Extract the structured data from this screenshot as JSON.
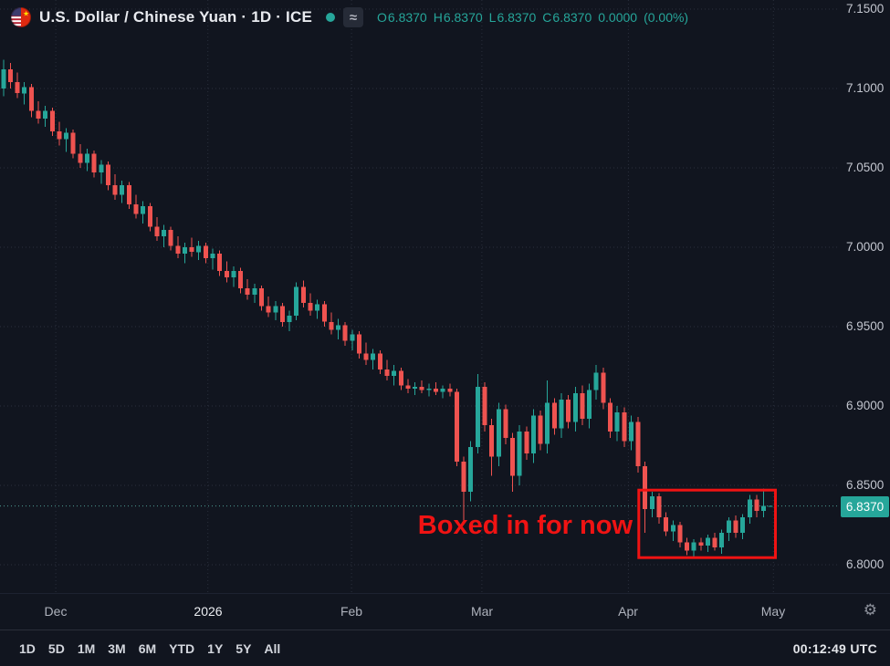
{
  "header": {
    "symbol_title": "U.S. Dollar / Chinese Yuan · 1D · ICE",
    "status_badge": "≈",
    "ohlc": {
      "open_label": "O",
      "open": "6.8370",
      "high_label": "H",
      "high": "6.8370",
      "low_label": "L",
      "low": "6.8370",
      "close_label": "C",
      "close": "6.8370",
      "change": "0.0000",
      "change_pct": "(0.00%)"
    }
  },
  "annotation": {
    "text": "Boxed in for now",
    "color": "#f01313"
  },
  "icons": {
    "gear": "⚙",
    "flag": "us-cn-pair-flag",
    "status_dot_color": "#26a69a"
  },
  "price_axis": {
    "ticks": [
      "7.1500",
      "7.1000",
      "7.0500",
      "7.0000",
      "6.9500",
      "6.9000",
      "6.8500",
      "6.8000"
    ],
    "current": "6.8370",
    "current_value": 6.837,
    "label_color": "#26a69a"
  },
  "time_axis": {
    "labels": [
      {
        "text": "Dec",
        "pos": 8.0
      },
      {
        "text": "2026",
        "pos": 29.8,
        "year": true
      },
      {
        "text": "Feb",
        "pos": 50.4
      },
      {
        "text": "Mar",
        "pos": 69.1
      },
      {
        "text": "Apr",
        "pos": 90.1
      },
      {
        "text": "May",
        "pos": 110.9
      }
    ]
  },
  "toolbar": {
    "ranges": [
      "1D",
      "5D",
      "1M",
      "3M",
      "6M",
      "YTD",
      "1Y",
      "5Y",
      "All"
    ],
    "clock": "00:12:49 UTC"
  },
  "chart_data": {
    "type": "candlestick",
    "title": "U.S. Dollar / Chinese Yuan",
    "interval": "1D",
    "exchange": "ICE",
    "up_color": "#26a69a",
    "down_color": "#ef5350",
    "grid": true,
    "y_axis": {
      "min": 6.78,
      "max": 7.155,
      "ticks": [
        7.15,
        7.1,
        7.05,
        7.0,
        6.95,
        6.9,
        6.85,
        6.8
      ]
    },
    "current_price": 6.837,
    "box": {
      "x1_bar": 91.6,
      "x2_bar": 111.2,
      "price_top": 6.847,
      "price_bottom": 6.8045
    },
    "candles": [
      [
        7.1,
        7.118,
        7.095,
        7.112
      ],
      [
        7.112,
        7.116,
        7.1,
        7.104
      ],
      [
        7.104,
        7.11,
        7.094,
        7.097
      ],
      [
        7.097,
        7.104,
        7.09,
        7.101
      ],
      [
        7.101,
        7.103,
        7.082,
        7.086
      ],
      [
        7.086,
        7.092,
        7.078,
        7.081
      ],
      [
        7.081,
        7.089,
        7.076,
        7.086
      ],
      [
        7.086,
        7.088,
        7.07,
        7.073
      ],
      [
        7.073,
        7.079,
        7.064,
        7.068
      ],
      [
        7.068,
        7.075,
        7.06,
        7.072
      ],
      [
        7.072,
        7.074,
        7.056,
        7.059
      ],
      [
        7.059,
        7.065,
        7.05,
        7.053
      ],
      [
        7.053,
        7.062,
        7.048,
        7.059
      ],
      [
        7.059,
        7.061,
        7.044,
        7.047
      ],
      [
        7.047,
        7.055,
        7.04,
        7.052
      ],
      [
        7.052,
        7.054,
        7.036,
        7.039
      ],
      [
        7.039,
        7.046,
        7.03,
        7.033
      ],
      [
        7.033,
        7.042,
        7.028,
        7.039
      ],
      [
        7.039,
        7.041,
        7.024,
        7.027
      ],
      [
        7.027,
        7.033,
        7.018,
        7.021
      ],
      [
        7.021,
        7.029,
        7.015,
        7.026
      ],
      [
        7.026,
        7.028,
        7.01,
        7.013
      ],
      [
        7.013,
        7.019,
        7.004,
        7.007
      ],
      [
        7.007,
        7.014,
        7.0,
        7.011
      ],
      [
        7.011,
        7.013,
        6.998,
        7.001
      ],
      [
        7.001,
        7.007,
        6.993,
        6.996
      ],
      [
        6.996,
        7.003,
        6.99,
        7.0
      ],
      [
        7.0,
        7.006,
        6.994,
        6.997
      ],
      [
        6.997,
        7.004,
        6.992,
        7.001
      ],
      [
        7.001,
        7.003,
        6.99,
        6.993
      ],
      [
        6.993,
        6.999,
        6.986,
        6.996
      ],
      [
        6.996,
        6.998,
        6.982,
        6.985
      ],
      [
        6.985,
        6.991,
        6.978,
        6.981
      ],
      [
        6.981,
        6.988,
        6.975,
        6.985
      ],
      [
        6.985,
        6.987,
        6.971,
        6.974
      ],
      [
        6.974,
        6.98,
        6.967,
        6.97
      ],
      [
        6.97,
        6.977,
        6.965,
        6.974
      ],
      [
        6.974,
        6.976,
        6.96,
        6.963
      ],
      [
        6.963,
        6.969,
        6.956,
        6.959
      ],
      [
        6.959,
        6.966,
        6.954,
        6.963
      ],
      [
        6.963,
        6.965,
        6.95,
        6.953
      ],
      [
        6.953,
        6.96,
        6.947,
        6.957
      ],
      [
        6.957,
        6.978,
        6.954,
        6.975
      ],
      [
        6.975,
        6.979,
        6.962,
        6.965
      ],
      [
        6.965,
        6.971,
        6.957,
        6.96
      ],
      [
        6.96,
        6.967,
        6.955,
        6.964
      ],
      [
        6.964,
        6.966,
        6.95,
        6.953
      ],
      [
        6.953,
        6.959,
        6.945,
        6.948
      ],
      [
        6.948,
        6.955,
        6.942,
        6.951
      ],
      [
        6.951,
        6.953,
        6.938,
        6.941
      ],
      [
        6.941,
        6.948,
        6.935,
        6.945
      ],
      [
        6.945,
        6.947,
        6.93,
        6.933
      ],
      [
        6.933,
        6.94,
        6.926,
        6.929
      ],
      [
        6.929,
        6.936,
        6.923,
        6.933
      ],
      [
        6.933,
        6.935,
        6.92,
        6.923
      ],
      [
        6.923,
        6.929,
        6.916,
        6.919
      ],
      [
        6.919,
        6.926,
        6.913,
        6.922
      ],
      [
        6.922,
        6.924,
        6.91,
        6.913
      ],
      [
        6.913,
        6.917,
        6.908,
        6.911
      ],
      [
        6.911,
        6.915,
        6.907,
        6.912
      ],
      [
        6.912,
        6.916,
        6.908,
        6.91
      ],
      [
        6.91,
        6.914,
        6.906,
        6.911
      ],
      [
        6.911,
        6.915,
        6.907,
        6.909
      ],
      [
        6.909,
        6.913,
        6.905,
        6.911
      ],
      [
        6.911,
        6.914,
        6.906,
        6.909
      ],
      [
        6.909,
        6.911,
        6.862,
        6.865
      ],
      [
        6.865,
        6.868,
        6.828,
        6.846
      ],
      [
        6.846,
        6.878,
        6.84,
        6.874
      ],
      [
        6.874,
        6.92,
        6.87,
        6.912
      ],
      [
        6.912,
        6.915,
        6.884,
        6.888
      ],
      [
        6.888,
        6.892,
        6.856,
        6.868
      ],
      [
        6.868,
        6.902,
        6.862,
        6.898
      ],
      [
        6.898,
        6.901,
        6.876,
        6.88
      ],
      [
        6.88,
        6.883,
        6.846,
        6.856
      ],
      [
        6.856,
        6.888,
        6.85,
        6.884
      ],
      [
        6.884,
        6.887,
        6.866,
        6.87
      ],
      [
        6.87,
        6.898,
        6.864,
        6.894
      ],
      [
        6.894,
        6.897,
        6.872,
        6.876
      ],
      [
        6.876,
        6.916,
        6.87,
        6.902
      ],
      [
        6.902,
        6.905,
        6.882,
        6.886
      ],
      [
        6.886,
        6.908,
        6.88,
        6.904
      ],
      [
        6.904,
        6.907,
        6.886,
        6.89
      ],
      [
        6.89,
        6.912,
        6.884,
        6.908
      ],
      [
        6.908,
        6.913,
        6.888,
        6.892
      ],
      [
        6.892,
        6.914,
        6.886,
        6.91
      ],
      [
        6.91,
        6.926,
        6.904,
        6.921
      ],
      [
        6.921,
        6.924,
        6.898,
        6.902
      ],
      [
        6.902,
        6.905,
        6.88,
        6.884
      ],
      [
        6.884,
        6.9,
        6.878,
        6.896
      ],
      [
        6.896,
        6.899,
        6.874,
        6.878
      ],
      [
        6.878,
        6.894,
        6.872,
        6.89
      ],
      [
        6.89,
        6.893,
        6.858,
        6.862
      ],
      [
        6.862,
        6.865,
        6.82,
        6.835
      ],
      [
        6.835,
        6.846,
        6.83,
        6.843
      ],
      [
        6.843,
        6.845,
        6.826,
        6.83
      ],
      [
        6.83,
        6.833,
        6.818,
        6.821
      ],
      [
        6.821,
        6.828,
        6.815,
        6.825
      ],
      [
        6.825,
        6.827,
        6.811,
        6.814
      ],
      [
        6.814,
        6.817,
        6.806,
        6.809
      ],
      [
        6.809,
        6.816,
        6.805,
        6.814
      ],
      [
        6.814,
        6.817,
        6.809,
        6.812
      ],
      [
        6.812,
        6.819,
        6.808,
        6.817
      ],
      [
        6.817,
        6.82,
        6.809,
        6.811
      ],
      [
        6.811,
        6.822,
        6.807,
        6.82
      ],
      [
        6.82,
        6.83,
        6.815,
        6.828
      ],
      [
        6.828,
        6.831,
        6.817,
        6.82
      ],
      [
        6.82,
        6.832,
        6.816,
        6.83
      ],
      [
        6.83,
        6.844,
        6.826,
        6.841
      ],
      [
        6.841,
        6.844,
        6.83,
        6.834
      ],
      [
        6.834,
        6.848,
        6.83,
        6.837
      ],
      [
        6.837,
        6.837,
        6.837,
        6.837
      ]
    ]
  }
}
